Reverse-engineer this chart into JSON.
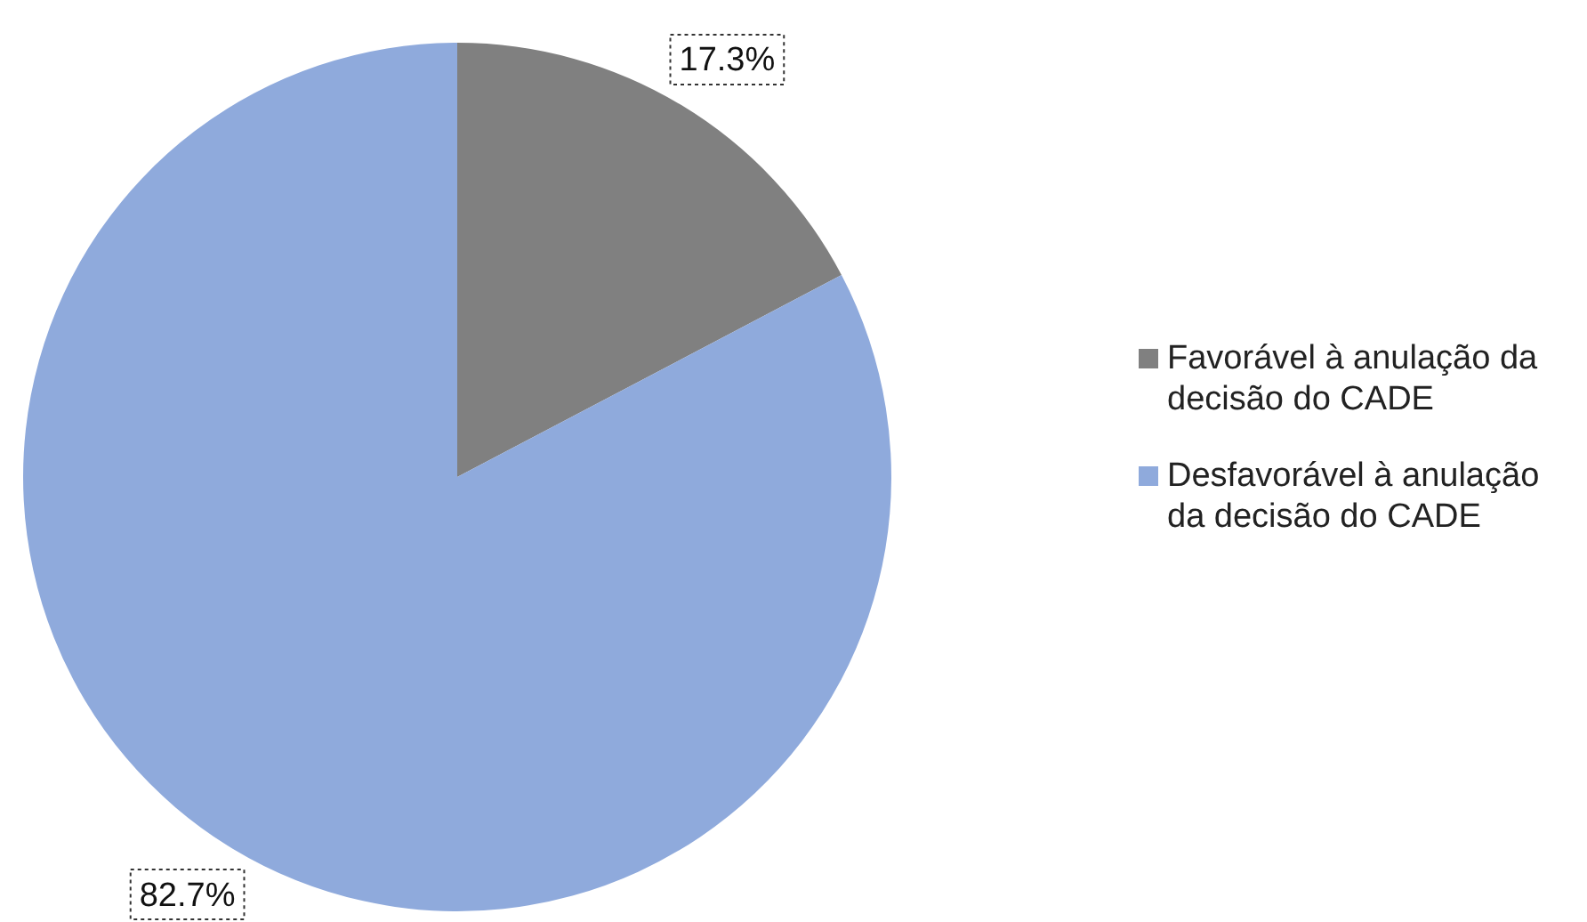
{
  "chart_data": {
    "type": "pie",
    "categories": [
      "Favorável à anulação da decisão do CADE",
      "Desfavorável à anulação da decisão do CADE"
    ],
    "values": [
      17.3,
      82.7
    ],
    "colors": [
      "#808080",
      "#8faadc"
    ],
    "value_labels": [
      "17.3%",
      "82.7%"
    ],
    "legend": "right"
  }
}
